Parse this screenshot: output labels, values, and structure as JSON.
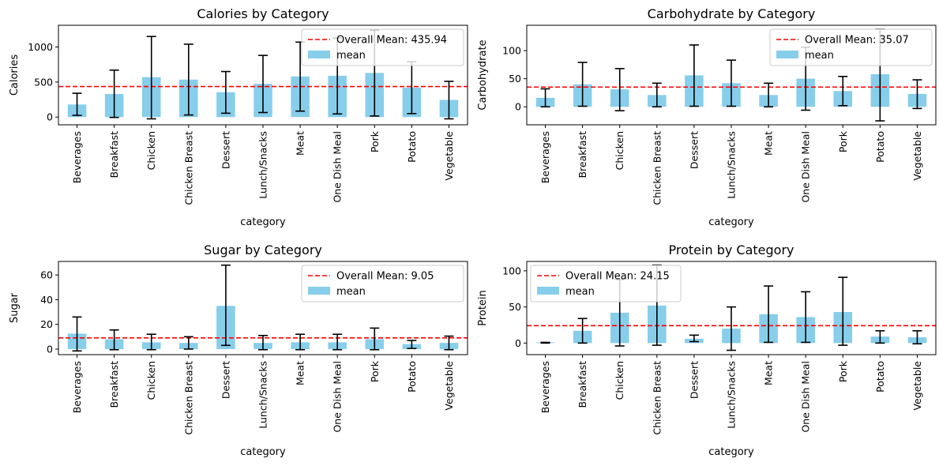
{
  "chart_data": [
    {
      "type": "bar",
      "title": "Calories by Category",
      "xlabel": "category",
      "ylabel": "Calories",
      "categories": [
        "Beverages",
        "Breakfast",
        "Chicken",
        "Chicken Breast",
        "Dessert",
        "Lunch/Snacks",
        "Meat",
        "One Dish Meal",
        "Pork",
        "Potato",
        "Vegetable"
      ],
      "series": [
        {
          "name": "mean",
          "values": [
            180,
            330,
            570,
            535,
            355,
            475,
            580,
            590,
            630,
            420,
            245
          ]
        }
      ],
      "error_low": [
        25,
        -5,
        -25,
        30,
        55,
        65,
        85,
        45,
        15,
        50,
        -25
      ],
      "error_high": [
        340,
        670,
        1150,
        1040,
        650,
        880,
        1070,
        1130,
        1240,
        790,
        510
      ],
      "mean_line": {
        "label": "Overall Mean: 435.94",
        "value": 435.94
      },
      "ylim": [
        -110,
        1310
      ],
      "yticks": [
        0,
        500,
        1000
      ],
      "legend": "top-right",
      "colors": {
        "bar": "#87ceeb",
        "mean": "#ff0000",
        "error": "#000000"
      }
    },
    {
      "type": "bar",
      "title": "Carbohydrate by Category",
      "xlabel": "category",
      "ylabel": "Carbohydrate",
      "categories": [
        "Beverages",
        "Breakfast",
        "Chicken",
        "Chicken Breast",
        "Dessert",
        "Lunch/Snacks",
        "Meat",
        "One Dish Meal",
        "Pork",
        "Potato",
        "Vegetable"
      ],
      "series": [
        {
          "name": "mean",
          "values": [
            16,
            40,
            31,
            21,
            56,
            42,
            21,
            50,
            28,
            58,
            23
          ]
        }
      ],
      "error_low": [
        0,
        1,
        -7,
        0,
        1,
        1,
        0,
        -6,
        2,
        -25,
        -3
      ],
      "error_high": [
        32,
        79,
        68,
        42,
        110,
        83,
        42,
        106,
        54,
        138,
        48
      ],
      "mean_line": {
        "label": "Overall Mean: 35.07",
        "value": 35.07
      },
      "ylim": [
        -32,
        145
      ],
      "yticks": [
        0,
        50,
        100
      ],
      "legend": "top-right",
      "colors": {
        "bar": "#87ceeb",
        "mean": "#ff0000",
        "error": "#000000"
      }
    },
    {
      "type": "bar",
      "title": "Sugar by Category",
      "xlabel": "category",
      "ylabel": "Sugar",
      "categories": [
        "Beverages",
        "Breakfast",
        "Chicken",
        "Chicken Breast",
        "Dessert",
        "Lunch/Snacks",
        "Meat",
        "One Dish Meal",
        "Pork",
        "Potato",
        "Vegetable"
      ],
      "series": [
        {
          "name": "mean",
          "values": [
            12.5,
            8,
            5.5,
            5,
            35,
            5,
            5.5,
            5.5,
            8,
            4,
            5
          ]
        }
      ],
      "error_low": [
        -1.5,
        -0.5,
        -0.5,
        0,
        3,
        -0.5,
        -0.5,
        -0.5,
        -0.5,
        0.5,
        -0.5
      ],
      "error_high": [
        26,
        15.5,
        12,
        10,
        68,
        11,
        12,
        12,
        17,
        7,
        10.5
      ],
      "mean_line": {
        "label": "Overall Mean: 9.05",
        "value": 9.05
      },
      "ylim": [
        -4.5,
        71
      ],
      "yticks": [
        0,
        20,
        40,
        60
      ],
      "legend": "top-right",
      "colors": {
        "bar": "#87ceeb",
        "mean": "#ff0000",
        "error": "#000000"
      }
    },
    {
      "type": "bar",
      "title": "Protein by Category",
      "xlabel": "category",
      "ylabel": "Protein",
      "categories": [
        "Beverages",
        "Breakfast",
        "Chicken",
        "Chicken Breast",
        "Dessert",
        "Lunch/Snacks",
        "Meat",
        "One Dish Meal",
        "Pork",
        "Potato",
        "Vegetable"
      ],
      "series": [
        {
          "name": "mean",
          "values": [
            1,
            17,
            42,
            52,
            6,
            20,
            40,
            36,
            43,
            9,
            8
          ]
        }
      ],
      "error_low": [
        0,
        0,
        -4,
        -3,
        2,
        -10,
        1,
        1,
        -3,
        0,
        -1
      ],
      "error_high": [
        1,
        34,
        88,
        108,
        11,
        50,
        79,
        71,
        91,
        17,
        17
      ],
      "mean_line": {
        "label": "Overall Mean: 24.15",
        "value": 24.15
      },
      "ylim": [
        -16,
        113
      ],
      "yticks": [
        0,
        50,
        100
      ],
      "legend": "top-left",
      "colors": {
        "bar": "#87ceeb",
        "mean": "#ff0000",
        "error": "#000000"
      }
    }
  ]
}
